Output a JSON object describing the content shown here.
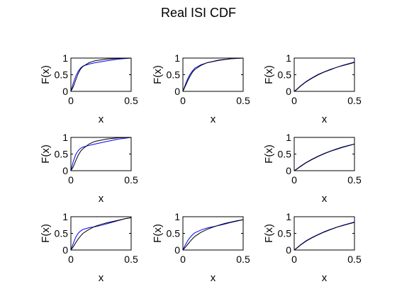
{
  "figure": {
    "title": "Real ISI CDF"
  },
  "chart_data": [
    {
      "type": "line",
      "row": 1,
      "col": 1,
      "xlabel": "x",
      "ylabel": "F(x)",
      "xlim": [
        0,
        0.5
      ],
      "ylim": [
        0,
        1
      ],
      "xticks": [
        "0",
        "0.5"
      ],
      "yticks": [
        "0",
        "0.5",
        "1"
      ],
      "series": [
        {
          "color": "#0000ff",
          "x": [
            0,
            0.02,
            0.04,
            0.06,
            0.08,
            0.1,
            0.15,
            0.2,
            0.3,
            0.4,
            0.5
          ],
          "y": [
            0,
            0.25,
            0.45,
            0.6,
            0.7,
            0.76,
            0.82,
            0.86,
            0.92,
            0.97,
            1.0
          ]
        },
        {
          "color": "#000000",
          "x": [
            0,
            0.02,
            0.04,
            0.06,
            0.08,
            0.1,
            0.15,
            0.2,
            0.3,
            0.4,
            0.5
          ],
          "y": [
            0,
            0.14,
            0.34,
            0.53,
            0.67,
            0.75,
            0.86,
            0.92,
            0.97,
            0.99,
            1.0
          ]
        }
      ]
    },
    {
      "type": "line",
      "row": 1,
      "col": 2,
      "xlabel": "x",
      "ylabel": "F(x)",
      "xlim": [
        0,
        0.5
      ],
      "ylim": [
        0,
        1
      ],
      "xticks": [
        "0",
        "0.5"
      ],
      "yticks": [
        "0",
        "0.5",
        "1"
      ],
      "series": [
        {
          "color": "#0000ff",
          "x": [
            0,
            0.02,
            0.04,
            0.06,
            0.08,
            0.1,
            0.15,
            0.2,
            0.3,
            0.4,
            0.5
          ],
          "y": [
            0,
            0.2,
            0.38,
            0.52,
            0.62,
            0.7,
            0.8,
            0.86,
            0.93,
            0.98,
            1.0
          ]
        },
        {
          "color": "#000000",
          "x": [
            0,
            0.02,
            0.04,
            0.06,
            0.08,
            0.1,
            0.15,
            0.2,
            0.3,
            0.4,
            0.5
          ],
          "y": [
            0,
            0.16,
            0.32,
            0.46,
            0.58,
            0.66,
            0.78,
            0.86,
            0.94,
            0.98,
            1.0
          ]
        }
      ]
    },
    {
      "type": "line",
      "row": 1,
      "col": 3,
      "xlabel": "x",
      "ylabel": "F(x)",
      "xlim": [
        0,
        0.5
      ],
      "ylim": [
        0,
        1
      ],
      "xticks": [
        "0",
        "0.5"
      ],
      "yticks": [
        "0",
        "0.5",
        "1"
      ],
      "series": [
        {
          "color": "#0000ff",
          "x": [
            0,
            0.02,
            0.05,
            0.1,
            0.15,
            0.2,
            0.25,
            0.3,
            0.35,
            0.4,
            0.45,
            0.5
          ],
          "y": [
            0,
            0.06,
            0.16,
            0.3,
            0.41,
            0.51,
            0.59,
            0.66,
            0.72,
            0.78,
            0.83,
            0.88
          ]
        },
        {
          "color": "#000000",
          "x": [
            0,
            0.02,
            0.05,
            0.1,
            0.15,
            0.2,
            0.25,
            0.3,
            0.35,
            0.4,
            0.45,
            0.5
          ],
          "y": [
            0,
            0.05,
            0.15,
            0.29,
            0.4,
            0.5,
            0.58,
            0.65,
            0.72,
            0.77,
            0.82,
            0.87
          ]
        }
      ]
    },
    {
      "type": "line",
      "row": 2,
      "col": 1,
      "xlabel": "x",
      "ylabel": "F(x)",
      "xlim": [
        0,
        0.5
      ],
      "ylim": [
        0,
        1
      ],
      "xticks": [
        "0",
        "0.5"
      ],
      "yticks": [
        "0",
        "0.5",
        "1"
      ],
      "series": [
        {
          "color": "#0000ff",
          "x": [
            0,
            0.02,
            0.04,
            0.06,
            0.08,
            0.1,
            0.15,
            0.2,
            0.3,
            0.4,
            0.5
          ],
          "y": [
            0,
            0.28,
            0.48,
            0.6,
            0.67,
            0.71,
            0.76,
            0.8,
            0.88,
            0.95,
            1.0
          ]
        },
        {
          "color": "#000000",
          "x": [
            0,
            0.02,
            0.04,
            0.06,
            0.08,
            0.1,
            0.15,
            0.2,
            0.3,
            0.4,
            0.5
          ],
          "y": [
            0,
            0.12,
            0.3,
            0.46,
            0.58,
            0.66,
            0.8,
            0.88,
            0.95,
            0.99,
            1.0
          ]
        }
      ]
    },
    {
      "type": "line",
      "row": 2,
      "col": 3,
      "xlabel": "x",
      "ylabel": "F(x)",
      "xlim": [
        0,
        0.5
      ],
      "ylim": [
        0,
        1
      ],
      "xticks": [
        "0",
        "0.5"
      ],
      "yticks": [
        "0",
        "0.5",
        "1"
      ],
      "series": [
        {
          "color": "#0000ff",
          "x": [
            0,
            0.02,
            0.05,
            0.1,
            0.15,
            0.2,
            0.25,
            0.3,
            0.35,
            0.4,
            0.45,
            0.5
          ],
          "y": [
            0,
            0.05,
            0.13,
            0.25,
            0.35,
            0.44,
            0.52,
            0.59,
            0.65,
            0.71,
            0.76,
            0.8
          ]
        },
        {
          "color": "#000000",
          "x": [
            0,
            0.02,
            0.05,
            0.1,
            0.15,
            0.2,
            0.25,
            0.3,
            0.35,
            0.4,
            0.45,
            0.5
          ],
          "y": [
            0,
            0.04,
            0.12,
            0.24,
            0.34,
            0.43,
            0.51,
            0.58,
            0.64,
            0.7,
            0.75,
            0.8
          ]
        }
      ]
    },
    {
      "type": "line",
      "row": 3,
      "col": 1,
      "xlabel": "x",
      "ylabel": "F(x)",
      "xlim": [
        0,
        0.5
      ],
      "ylim": [
        0,
        1
      ],
      "xticks": [
        "0",
        "0.5"
      ],
      "yticks": [
        "0",
        "0.5",
        "1"
      ],
      "series": [
        {
          "color": "#0000ff",
          "x": [
            0,
            0.02,
            0.04,
            0.06,
            0.08,
            0.1,
            0.15,
            0.2,
            0.25,
            0.3,
            0.35,
            0.4,
            0.45,
            0.5
          ],
          "y": [
            0,
            0.2,
            0.38,
            0.5,
            0.57,
            0.62,
            0.67,
            0.7,
            0.74,
            0.79,
            0.84,
            0.89,
            0.94,
            0.97
          ]
        },
        {
          "color": "#000000",
          "x": [
            0,
            0.02,
            0.04,
            0.06,
            0.08,
            0.1,
            0.15,
            0.2,
            0.25,
            0.3,
            0.35,
            0.4,
            0.45,
            0.5
          ],
          "y": [
            0,
            0.1,
            0.22,
            0.33,
            0.42,
            0.5,
            0.62,
            0.71,
            0.77,
            0.82,
            0.86,
            0.9,
            0.94,
            0.97
          ]
        }
      ]
    },
    {
      "type": "line",
      "row": 3,
      "col": 2,
      "xlabel": "x",
      "ylabel": "F(x)",
      "xlim": [
        0,
        0.5
      ],
      "ylim": [
        0,
        1
      ],
      "xticks": [
        "0",
        "0.5"
      ],
      "yticks": [
        "0",
        "0.5",
        "1"
      ],
      "series": [
        {
          "color": "#0000ff",
          "x": [
            0,
            0.02,
            0.04,
            0.06,
            0.08,
            0.1,
            0.15,
            0.2,
            0.25,
            0.3,
            0.35,
            0.4,
            0.45,
            0.5
          ],
          "y": [
            0,
            0.15,
            0.28,
            0.38,
            0.46,
            0.52,
            0.6,
            0.66,
            0.7,
            0.74,
            0.78,
            0.83,
            0.87,
            0.91
          ]
        },
        {
          "color": "#000000",
          "x": [
            0,
            0.02,
            0.04,
            0.06,
            0.08,
            0.1,
            0.15,
            0.2,
            0.25,
            0.3,
            0.35,
            0.4,
            0.45,
            0.5
          ],
          "y": [
            0,
            0.08,
            0.17,
            0.26,
            0.34,
            0.41,
            0.53,
            0.62,
            0.69,
            0.75,
            0.8,
            0.84,
            0.88,
            0.91
          ]
        }
      ]
    },
    {
      "type": "line",
      "row": 3,
      "col": 3,
      "xlabel": "x",
      "ylabel": "F(x)",
      "xlim": [
        0,
        0.5
      ],
      "ylim": [
        0,
        1
      ],
      "xticks": [
        "0",
        "0.5"
      ],
      "yticks": [
        "0",
        "0.5",
        "1"
      ],
      "series": [
        {
          "color": "#0000ff",
          "x": [
            0,
            0.02,
            0.05,
            0.1,
            0.15,
            0.2,
            0.25,
            0.3,
            0.35,
            0.4,
            0.45,
            0.5
          ],
          "y": [
            0,
            0.06,
            0.15,
            0.28,
            0.38,
            0.47,
            0.55,
            0.62,
            0.68,
            0.74,
            0.79,
            0.84
          ]
        },
        {
          "color": "#000000",
          "x": [
            0,
            0.02,
            0.05,
            0.1,
            0.15,
            0.2,
            0.25,
            0.3,
            0.35,
            0.4,
            0.45,
            0.5
          ],
          "y": [
            0,
            0.05,
            0.14,
            0.27,
            0.37,
            0.46,
            0.54,
            0.61,
            0.68,
            0.73,
            0.78,
            0.83
          ]
        }
      ]
    }
  ]
}
